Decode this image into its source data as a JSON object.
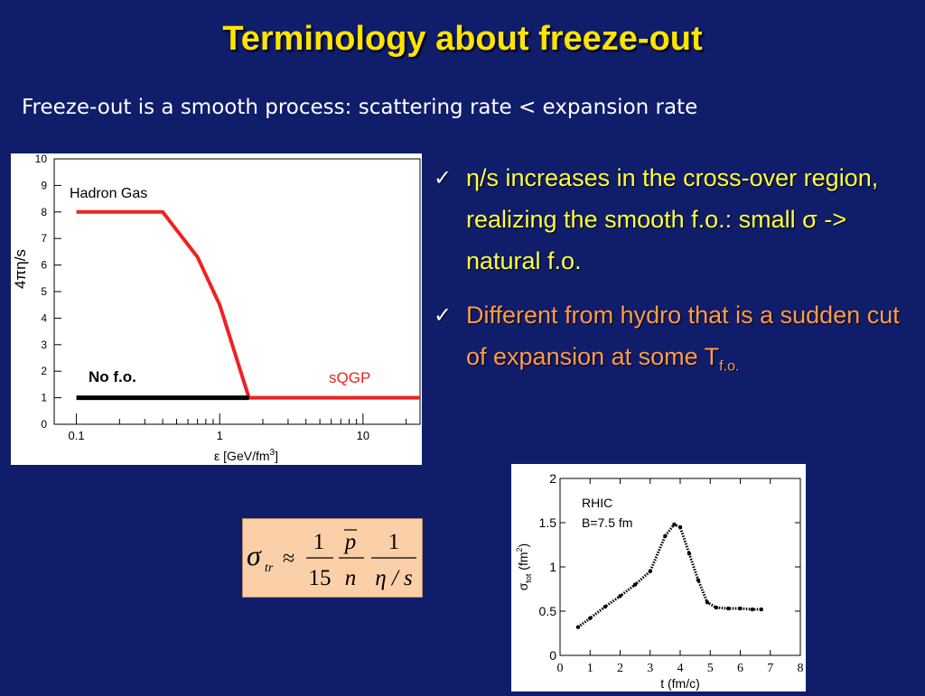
{
  "slide": {
    "title": "Terminology about freeze-out",
    "subtitle": "Freeze-out is a smooth process:  scattering rate < expansion rate",
    "bullets": [
      {
        "check": "✓",
        "parts": [
          "η",
          "/s increases in the cross-over region, realizing the smooth f.o.: small ",
          "σ",
          " -> natural f.o."
        ]
      },
      {
        "check": "✓",
        "text": "Different from hydro that is a sudden cut of expansion at some T",
        "subscript": "f.o."
      }
    ],
    "formula": {
      "lhs": "σ",
      "lhs_sub": "tr",
      "approx": "≈",
      "f1_num": "1",
      "f1_den": "15",
      "f2_num": "p",
      "f2_den": "n",
      "f3_num": "1",
      "f3_den": "η / s"
    }
  },
  "colors": {
    "background": "#101d6b",
    "title": "#ffe400",
    "bullet1": "#ffff40",
    "bullet2": "#ff9b4d",
    "formula_box": "#fbcfa8",
    "red_curve": "#ee2222"
  },
  "chart_data": [
    {
      "type": "line",
      "xlabel_parts": [
        "ε [GeV/fm",
        "3",
        "]"
      ],
      "ylabel": "4πη/s",
      "xscale": "log",
      "xlim": [
        0.07,
        25
      ],
      "ylim": [
        0,
        10
      ],
      "x_ticks": [
        0.1,
        1,
        10
      ],
      "x_tick_labels": [
        "0.1",
        "1",
        "10"
      ],
      "y_ticks": [
        0,
        1,
        2,
        3,
        4,
        5,
        6,
        7,
        8,
        9,
        10
      ],
      "y_tick_labels": [
        "0",
        "1",
        "2",
        "3",
        "4",
        "5",
        "6",
        "7",
        "8",
        "9",
        "10"
      ],
      "annotations": [
        "Hadron Gas",
        "sQGP",
        "No f.o."
      ],
      "series": [
        {
          "color": "#ee2222",
          "x": [
            0.1,
            0.4,
            0.7,
            1.0,
            1.6,
            25
          ],
          "y": [
            8,
            8,
            6.3,
            4.5,
            1,
            1
          ]
        },
        {
          "color": "#000000",
          "x": [
            0.1,
            1.6
          ],
          "y": [
            1,
            1
          ]
        }
      ]
    },
    {
      "type": "scatter",
      "xlabel": "t (fm/c)",
      "ylabel_parts": [
        "σ",
        "tot",
        " (fm",
        "2",
        ")"
      ],
      "xlim": [
        0,
        8
      ],
      "ylim": [
        0,
        2
      ],
      "x_ticks": [
        0,
        1,
        2,
        3,
        4,
        5,
        6,
        7,
        8
      ],
      "x_tick_labels": [
        "0",
        "1",
        "2",
        "3",
        "4",
        "5",
        "6",
        "7",
        "8"
      ],
      "y_ticks": [
        0,
        0.5,
        1,
        1.5,
        2
      ],
      "y_tick_labels": [
        "0",
        "0.5",
        "1",
        "1.5",
        "2"
      ],
      "annotations": [
        "RHIC",
        "B=7.5 fm"
      ],
      "series": [
        {
          "color": "#000000",
          "x": [
            0.6,
            1.0,
            1.5,
            2.0,
            2.5,
            3.0,
            3.5,
            3.8,
            4.0,
            4.3,
            4.6,
            4.9,
            5.2,
            5.6,
            6.0,
            6.4,
            6.7
          ],
          "y": [
            0.32,
            0.42,
            0.55,
            0.67,
            0.8,
            0.95,
            1.35,
            1.48,
            1.45,
            1.15,
            0.85,
            0.6,
            0.54,
            0.53,
            0.53,
            0.52,
            0.52
          ]
        }
      ]
    }
  ]
}
